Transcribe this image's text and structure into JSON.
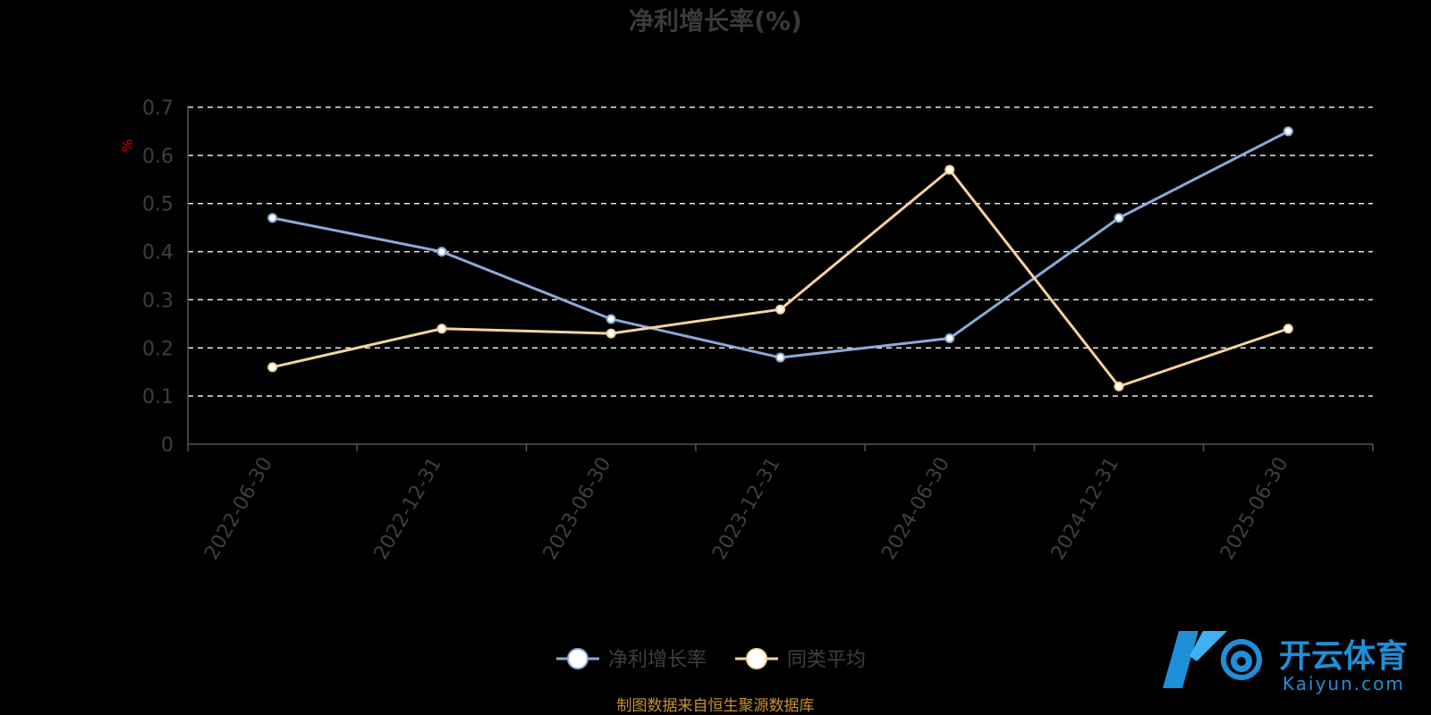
{
  "chart_data": {
    "type": "line",
    "title": "净利增长率(%)",
    "ylabel": "%",
    "xlabel": "",
    "ylim": [
      0,
      0.7
    ],
    "yticks": [
      "0",
      "0.1",
      "0.2",
      "0.3",
      "0.4",
      "0.5",
      "0.6",
      "0.7"
    ],
    "categories": [
      "2022-06-30",
      "2022-12-31",
      "2023-06-30",
      "2023-12-31",
      "2024-06-30",
      "2024-12-31",
      "2025-06-30"
    ],
    "series": [
      {
        "name": "净利增长率",
        "color": "#8aaad8",
        "values": [
          0.47,
          0.4,
          0.26,
          0.18,
          0.22,
          0.47,
          0.65
        ]
      },
      {
        "name": "同类平均",
        "color": "#f5d49a",
        "values": [
          0.16,
          0.24,
          0.23,
          0.28,
          0.57,
          0.12,
          0.24
        ]
      }
    ],
    "grid": true,
    "legend": "bottom-center"
  },
  "source_note": "制图数据来自恒生聚源数据库",
  "watermark": {
    "cn": "开云体育",
    "en": "Kaiyun.com",
    "color": "#1e8fd8"
  }
}
